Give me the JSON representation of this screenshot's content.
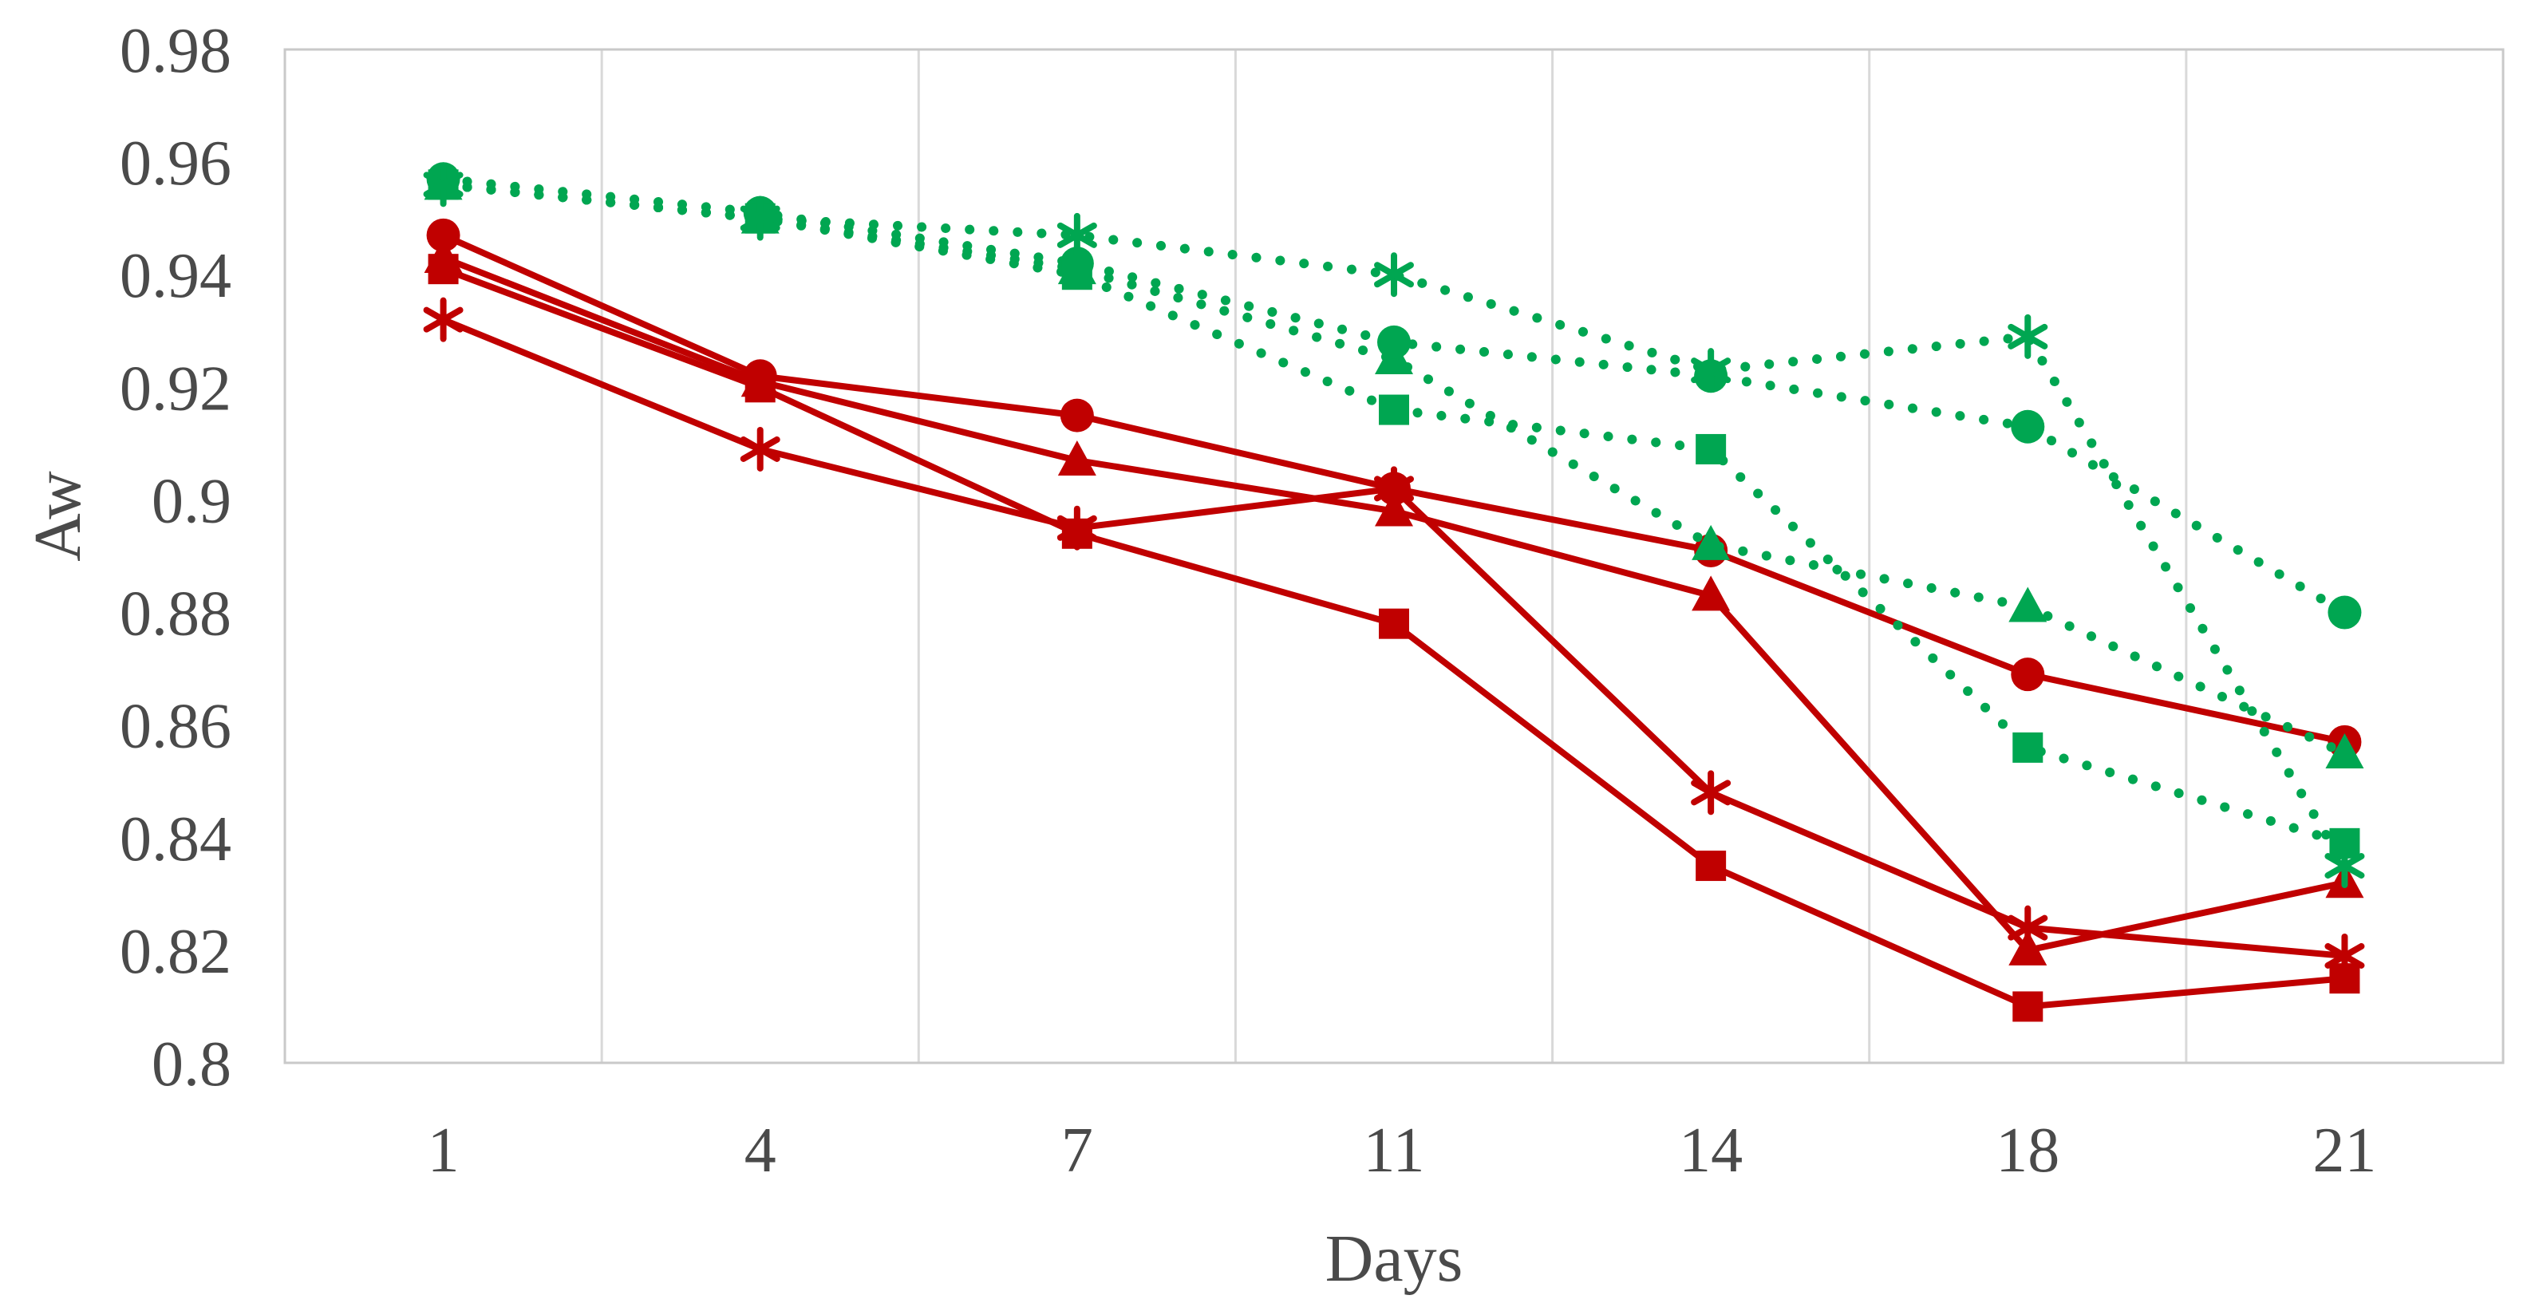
{
  "chart_data": {
    "type": "line",
    "title": "",
    "xlabel": "Days",
    "ylabel": "Aw",
    "x_categories": [
      "1",
      "4",
      "7",
      "11",
      "14",
      "18",
      "21"
    ],
    "ylim": [
      0.8,
      0.98
    ],
    "ytick_step": 0.02,
    "yticks": [
      {
        "value": 0.98,
        "label": "0.98"
      },
      {
        "value": 0.96,
        "label": "0.96"
      },
      {
        "value": 0.94,
        "label": "0.94"
      },
      {
        "value": 0.92,
        "label": "0.92"
      },
      {
        "value": 0.9,
        "label": "0.9"
      },
      {
        "value": 0.88,
        "label": "0.88"
      },
      {
        "value": 0.86,
        "label": "0.86"
      },
      {
        "value": 0.84,
        "label": "0.84"
      },
      {
        "value": 0.82,
        "label": "0.82"
      },
      {
        "value": 0.8,
        "label": "0.8"
      }
    ],
    "grid": "vertical-only",
    "legend_position": "none",
    "colors": {
      "green": "#00a651",
      "red": "#c00000",
      "grid": "#d9d9d9",
      "border": "#c9c9c9",
      "axis_text": "#4a4a4a"
    },
    "series": [
      {
        "name": "red-triangle",
        "color": "red",
        "line_style": "solid",
        "marker": "triangle",
        "values": [
          0.943,
          0.921,
          0.907,
          0.898,
          0.883,
          0.82,
          0.832
        ]
      },
      {
        "name": "red-square",
        "color": "red",
        "line_style": "solid",
        "marker": "square",
        "values": [
          0.941,
          0.92,
          0.894,
          0.878,
          0.835,
          0.81,
          0.815
        ]
      },
      {
        "name": "red-circle",
        "color": "red",
        "line_style": "solid",
        "marker": "circle",
        "values": [
          0.947,
          0.922,
          0.915,
          0.902,
          0.891,
          0.869,
          0.857
        ]
      },
      {
        "name": "red-asterisk",
        "color": "red",
        "line_style": "solid",
        "marker": "asterisk",
        "values": [
          0.932,
          0.909,
          0.895,
          0.902,
          0.848,
          0.824,
          0.819
        ]
      },
      {
        "name": "green-triangle",
        "color": "green",
        "line_style": "dotted",
        "marker": "triangle",
        "values": [
          0.956,
          0.95,
          0.941,
          0.925,
          0.892,
          0.881,
          0.855
        ]
      },
      {
        "name": "green-circle",
        "color": "green",
        "line_style": "dotted",
        "marker": "circle",
        "values": [
          0.957,
          0.951,
          0.942,
          0.928,
          0.922,
          0.913,
          0.88
        ]
      },
      {
        "name": "green-square",
        "color": "green",
        "line_style": "dotted",
        "marker": "square",
        "values": [
          0.956,
          0.95,
          0.94,
          0.916,
          0.909,
          0.856,
          0.839
        ]
      },
      {
        "name": "green-asterisk",
        "color": "green",
        "line_style": "dotted",
        "marker": "asterisk",
        "values": [
          0.956,
          0.95,
          0.947,
          0.94,
          0.923,
          0.929,
          0.835
        ]
      }
    ]
  }
}
